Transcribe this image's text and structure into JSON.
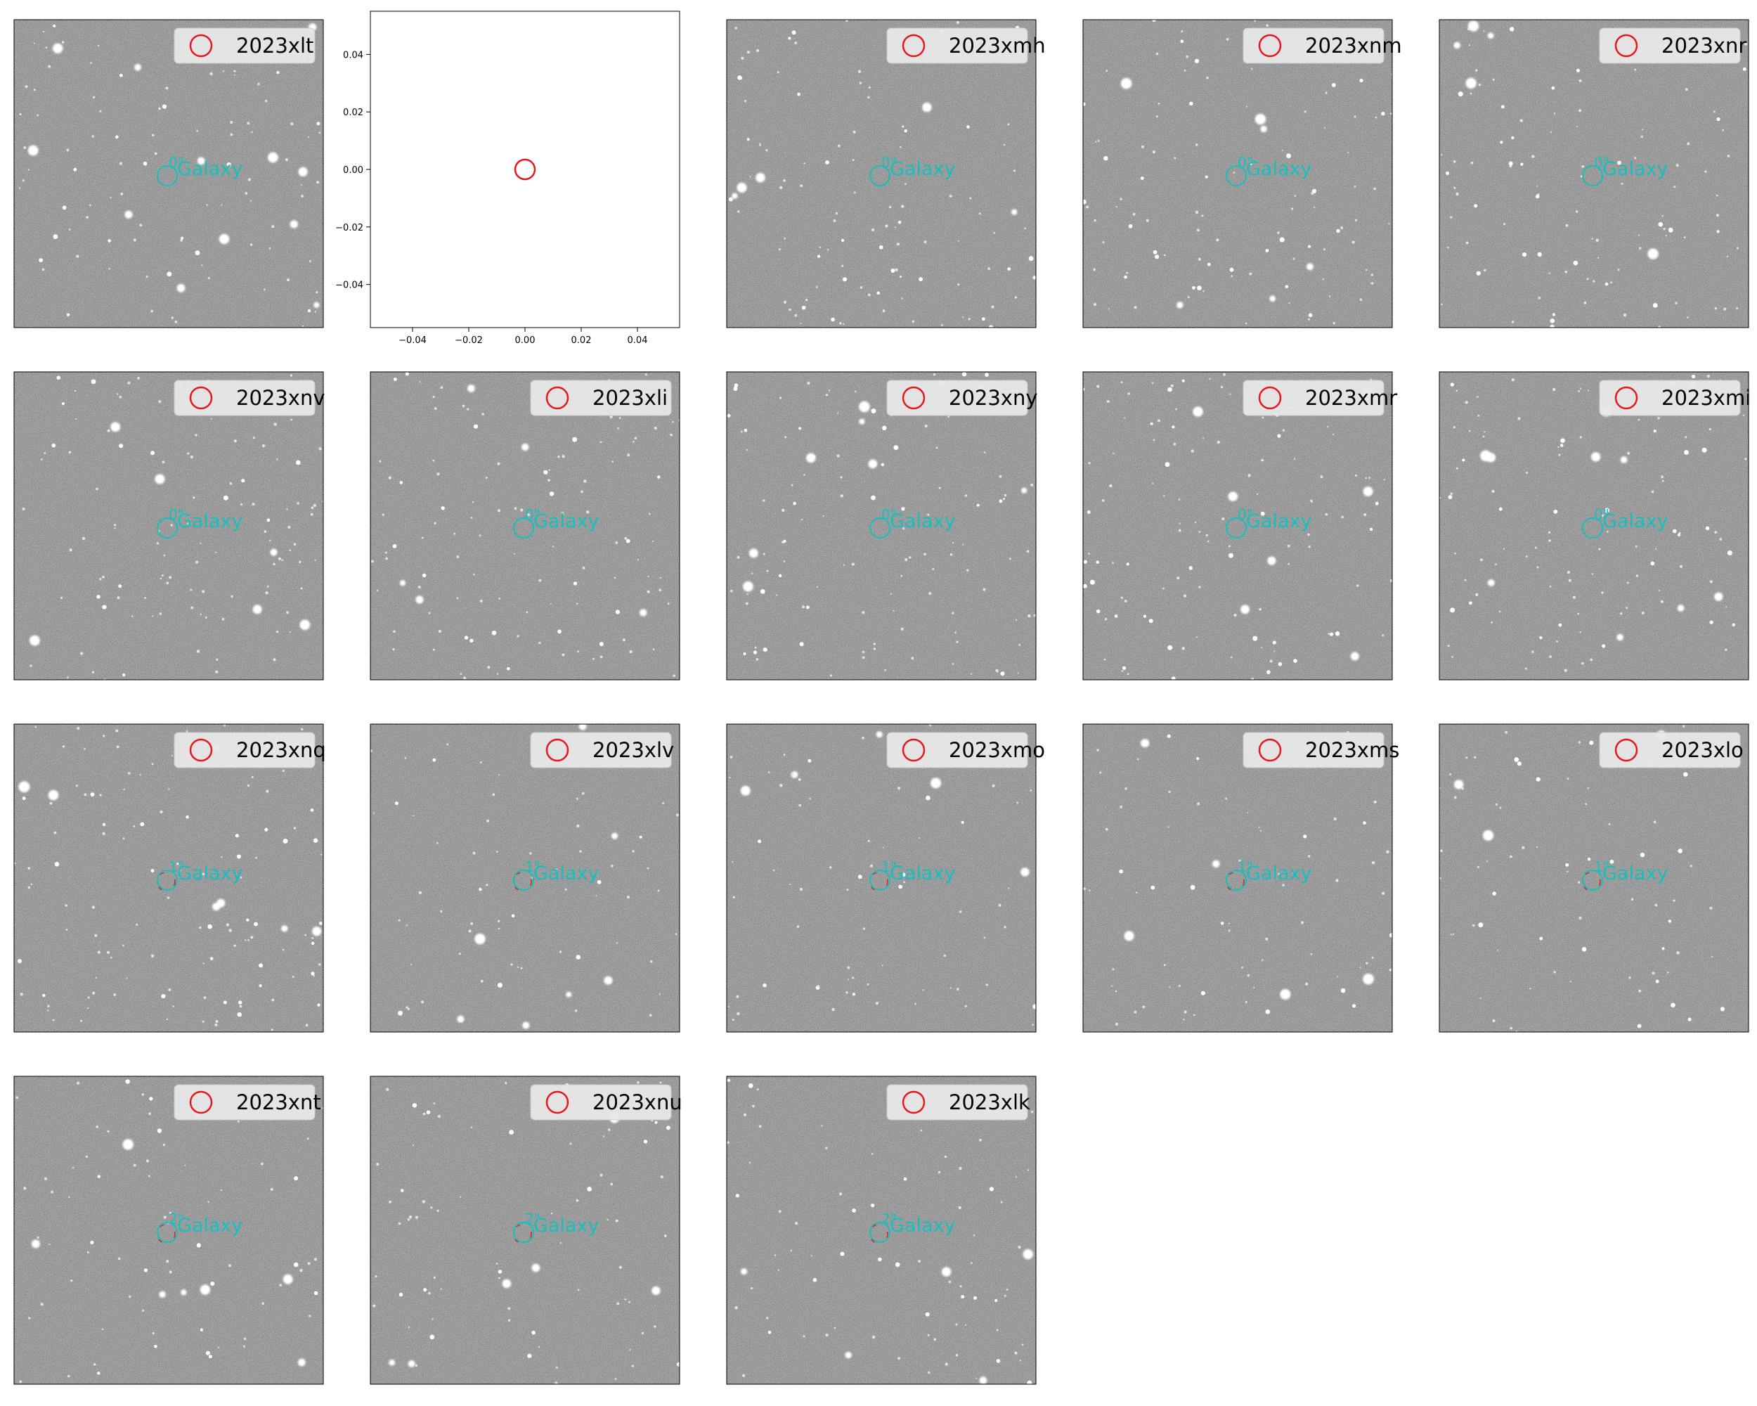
{
  "colors": {
    "background": "#ffffff",
    "sky": "#7c7c7c",
    "frame": "#000000",
    "legend_box": "#e8e8e8",
    "legend_edge": "#cccccc",
    "transient_marker": "#e8161c",
    "galaxy_marker": "#17bebe"
  },
  "galaxy_label": "Galaxy",
  "panels": [
    {
      "name": "2023xlt",
      "offset": "0\""
    },
    {
      "name": "",
      "offset": ""
    },
    {
      "name": "2023xmh",
      "offset": "0\""
    },
    {
      "name": "2023xnm",
      "offset": "0\""
    },
    {
      "name": "2023xnr",
      "offset": "0\""
    },
    {
      "name": "2023xnv",
      "offset": "0\""
    },
    {
      "name": "2023xli",
      "offset": "0\""
    },
    {
      "name": "2023xny",
      "offset": "0\""
    },
    {
      "name": "2023xmr",
      "offset": "0\""
    },
    {
      "name": "2023xmi",
      "offset": "0\""
    },
    {
      "name": "2023xnq",
      "offset": "1\""
    },
    {
      "name": "2023xlv",
      "offset": "1\""
    },
    {
      "name": "2023xmo",
      "offset": "1\""
    },
    {
      "name": "2023xms",
      "offset": "1\""
    },
    {
      "name": "2023xlo",
      "offset": "1\""
    },
    {
      "name": "2023xnt",
      "offset": "2\""
    },
    {
      "name": "2023xnu",
      "offset": "2\""
    },
    {
      "name": "2023xlk",
      "offset": "2\""
    }
  ],
  "chart_data": {
    "type": "scatter",
    "title": "",
    "xlabel": "",
    "ylabel": "",
    "xlim": [
      -0.055,
      0.055
    ],
    "ylim": [
      -0.055,
      0.055
    ],
    "xticks": [
      "−0.04",
      "−0.02",
      "0.00",
      "0.02",
      "0.04"
    ],
    "yticks": [
      "0.04",
      "0.02",
      "0.00",
      "−0.02",
      "−0.04"
    ],
    "x": [
      0.0
    ],
    "y": [
      0.0
    ],
    "grid": false
  }
}
